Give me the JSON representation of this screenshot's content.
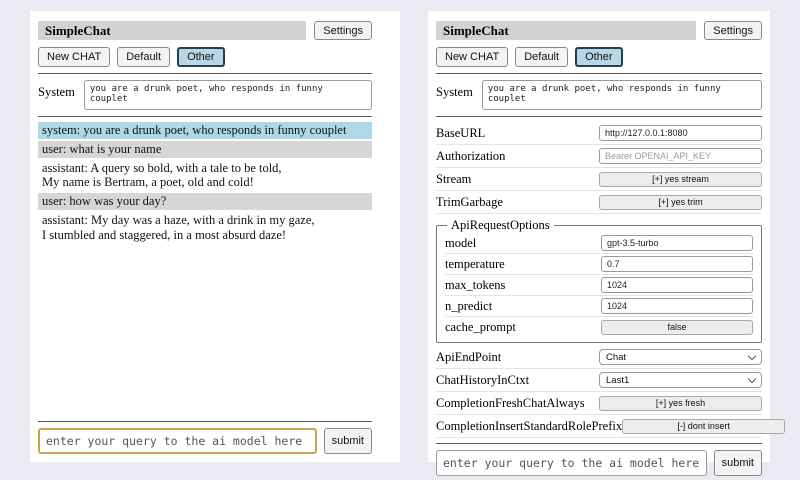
{
  "colors": {
    "page_bg": "#eaeaf2",
    "panel_bg": "#ffffff",
    "titlebar_bg": "#d3d3d3",
    "active_session_button_bg": "#b9d6e6",
    "active_session_button_border": "#23404f",
    "system_message_bg": "#add8e6",
    "user_message_bg": "#d6d6d6",
    "focused_input_border": "#cfa14e"
  },
  "header": {
    "title": "SimpleChat",
    "settings_label": "Settings",
    "session_buttons": [
      "New CHAT",
      "Default",
      "Other"
    ],
    "active_session": "Other"
  },
  "system": {
    "label": "System",
    "value": "you are a drunk poet, who responds in funny couplet"
  },
  "chat": {
    "messages": [
      {
        "role": "system",
        "text": "system: you are a drunk poet, who responds in funny couplet"
      },
      {
        "role": "user",
        "text": "user: what is your name"
      },
      {
        "role": "assistant",
        "text": "assistant: A query so bold, with a tale to be told,\nMy name is Bertram, a poet, old and cold!"
      },
      {
        "role": "user",
        "text": "user: how was your day?"
      },
      {
        "role": "assistant",
        "text": "assistant: My day was a haze, with a drink in my gaze,\nI stumbled and staggered, in a most absurd daze!"
      }
    ]
  },
  "settings": {
    "base_url": {
      "label": "BaseURL",
      "value": "http://127.0.0.1:8080"
    },
    "authorization": {
      "label": "Authorization",
      "placeholder": "Bearer OPENAI_API_KEY"
    },
    "stream": {
      "label": "Stream",
      "value": "[+] yes stream"
    },
    "trim_garbage": {
      "label": "TrimGarbage",
      "value": "[+] yes trim"
    },
    "api_request_options": {
      "legend": "ApiRequestOptions",
      "model": {
        "label": "model",
        "value": "gpt-3.5-turbo"
      },
      "temperature": {
        "label": "temperature",
        "value": "0.7"
      },
      "max_tokens": {
        "label": "max_tokens",
        "value": "1024"
      },
      "n_predict": {
        "label": "n_predict",
        "value": "1024"
      },
      "cache_prompt": {
        "label": "cache_prompt",
        "value": "false"
      }
    },
    "api_endpoint": {
      "label": "ApiEndPoint",
      "value": "Chat"
    },
    "chat_history_in_ctxt": {
      "label": "ChatHistoryInCtxt",
      "value": "Last1"
    },
    "completion_fresh_chat_always": {
      "label": "CompletionFreshChatAlways",
      "value": "[+] yes fresh"
    },
    "completion_insert_standard_role_prefix": {
      "label": "CompletionInsertStandardRolePrefix",
      "value": "[-] dont insert"
    }
  },
  "query": {
    "placeholder": "enter your query to the ai model here",
    "submit_label": "submit"
  }
}
